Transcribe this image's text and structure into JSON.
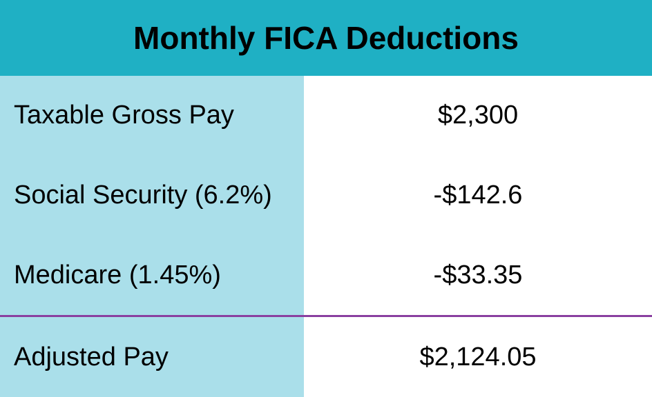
{
  "title": "Monthly FICA Deductions",
  "rows": [
    {
      "label": "Taxable Gross Pay",
      "value": "$2,300"
    },
    {
      "label": "Social Security (6.2%)",
      "value": "-$142.6"
    },
    {
      "label": "Medicare (1.45%)",
      "value": "-$33.35"
    },
    {
      "label": "Adjusted Pay",
      "value": "$2,124.05"
    }
  ],
  "style": {
    "header_bg": "#1fb0c4",
    "header_color": "#000000",
    "header_fontsize": 46,
    "label_bg": "#aadfea",
    "value_bg": "#ffffff",
    "text_color": "#000000",
    "body_fontsize": 38,
    "divider_color": "#8a3fa0"
  }
}
